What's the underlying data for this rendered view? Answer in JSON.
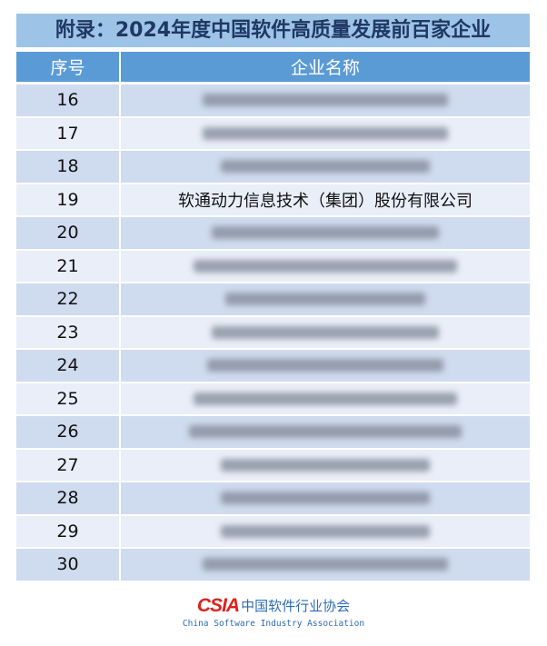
{
  "title": "附录：2024年度中国软件高质量发展前百家企业",
  "table": {
    "headers": [
      "序号",
      "企业名称"
    ],
    "rows": [
      {
        "no": "16",
        "name": "",
        "blurred": true
      },
      {
        "no": "17",
        "name": "",
        "blurred": true
      },
      {
        "no": "18",
        "name": "",
        "blurred": true
      },
      {
        "no": "19",
        "name": "软通动力信息技术（集团）股份有限公司",
        "blurred": false
      },
      {
        "no": "20",
        "name": "",
        "blurred": true
      },
      {
        "no": "21",
        "name": "",
        "blurred": true
      },
      {
        "no": "22",
        "name": "",
        "blurred": true
      },
      {
        "no": "23",
        "name": "",
        "blurred": true
      },
      {
        "no": "24",
        "name": "",
        "blurred": true
      },
      {
        "no": "25",
        "name": "",
        "blurred": true
      },
      {
        "no": "26",
        "name": "",
        "blurred": true
      },
      {
        "no": "27",
        "name": "",
        "blurred": true
      },
      {
        "no": "28",
        "name": "",
        "blurred": true
      },
      {
        "no": "29",
        "name": "",
        "blurred": true
      },
      {
        "no": "30",
        "name": "",
        "blurred": true
      }
    ]
  },
  "footer": {
    "logo": "CSIA",
    "org_cn": "中国软件行业协会",
    "org_en": "China Software Industry Association"
  },
  "colors": {
    "title_bg": "#9dc3e6",
    "header_bg": "#5b9bd5",
    "row_dark": "#cfdbee",
    "row_light": "#e9eef8",
    "logo_red": "#e0201b",
    "logo_blue": "#2e6db4"
  }
}
